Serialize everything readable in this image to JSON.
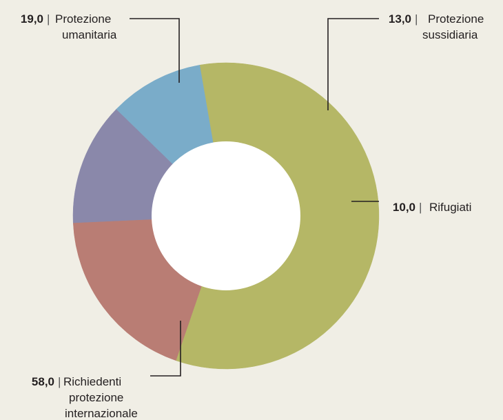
{
  "chart_data": {
    "type": "pie",
    "variant": "donut",
    "slices": [
      {
        "label_lines": [
          "Protezione",
          "umanitaria"
        ],
        "value": 19.0,
        "value_text": "19,0",
        "color": "#b97d74"
      },
      {
        "label_lines": [
          "Protezione",
          "sussidiaria"
        ],
        "value": 13.0,
        "value_text": "13,0",
        "color": "#8a88aa"
      },
      {
        "label_lines": [
          "Rifugiati"
        ],
        "value": 10.0,
        "value_text": "10,0",
        "color": "#7aacc9"
      },
      {
        "label_lines": [
          "Richiedenti",
          "protezione",
          "internazionale"
        ],
        "value": 58.0,
        "value_text": "58,0",
        "color": "#b5b766"
      }
    ],
    "legend": "callouts"
  },
  "colors": {
    "background": "#f0eee5",
    "hole": "#ffffff",
    "leader": "#231f20",
    "separator": "|"
  }
}
